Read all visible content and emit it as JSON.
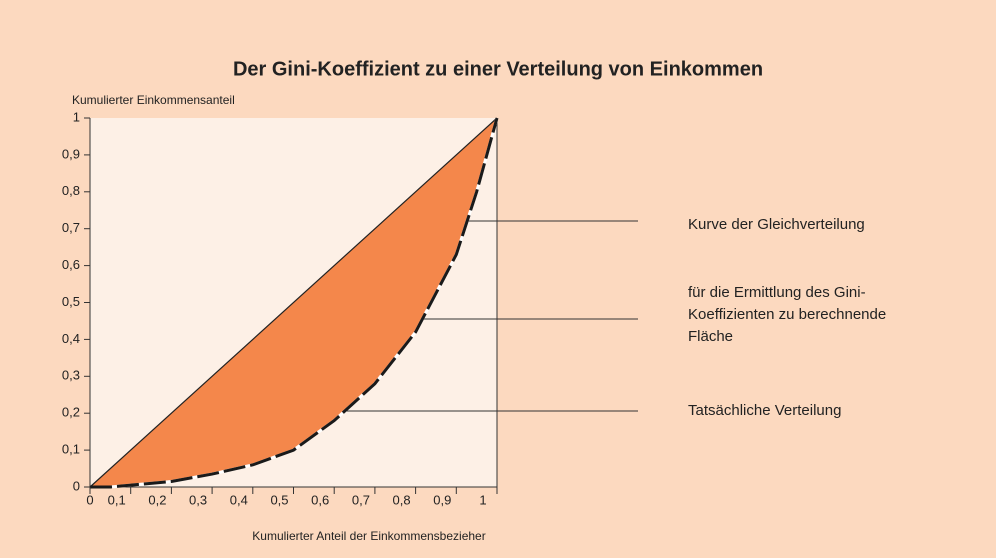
{
  "chart_data": {
    "type": "line",
    "title": "Der Gini-Koeffizient zu einer Verteilung von Einkommen",
    "y_label": "Kumulierter Einkommensanteil",
    "x_label": "Kumulierter Anteil der Einkommensbezieher",
    "x": [
      0,
      0.05,
      0.1,
      0.2,
      0.3,
      0.4,
      0.5,
      0.6,
      0.7,
      0.8,
      0.9,
      0.95,
      1
    ],
    "values": [
      0,
      0,
      0.005,
      0.015,
      0.035,
      0.06,
      0.1,
      0.18,
      0.28,
      0.42,
      0.63,
      0.8,
      1
    ],
    "color": "#1a1a1a",
    "area_color": "#f4874b",
    "xlim": [
      0,
      1
    ],
    "ylim": [
      0,
      1
    ],
    "xticks": [
      0,
      {
        "value": 0.1,
        "label": "0,1"
      },
      {
        "value": 0.2,
        "label": "0,2"
      },
      {
        "value": 0.3,
        "label": "0,3"
      },
      {
        "value": 0.4,
        "label": "0,4"
      },
      {
        "value": 0.5,
        "label": "0,5"
      },
      {
        "value": 0.6,
        "label": "0,6"
      },
      {
        "value": 0.7,
        "label": "0,7"
      },
      {
        "value": 0.8,
        "label": "0,8"
      },
      {
        "value": 0.9,
        "label": "0,9"
      },
      1
    ],
    "yticks": [
      0,
      {
        "value": 0.1,
        "label": "0,1"
      },
      {
        "value": 0.2,
        "label": "0,2"
      },
      {
        "value": 0.3,
        "label": "0,3"
      },
      {
        "value": 0.4,
        "label": "0,4"
      },
      {
        "value": 0.5,
        "label": "0,5"
      },
      {
        "value": 0.6,
        "label": "0,6"
      },
      {
        "value": 0.7,
        "label": "0,7"
      },
      {
        "value": 0.8,
        "label": "0,8"
      },
      {
        "value": 0.9,
        "label": "0,9"
      },
      1
    ],
    "annotations": [
      {
        "lines": [
          "Kurve der Gleichverteilung"
        ]
      },
      {
        "lines": [
          "für die Ermittlung des Gini-",
          "Koeffizienten zu berechnende",
          "Fläche"
        ]
      },
      {
        "lines": [
          "Tatsächliche Verteilung"
        ]
      }
    ]
  }
}
